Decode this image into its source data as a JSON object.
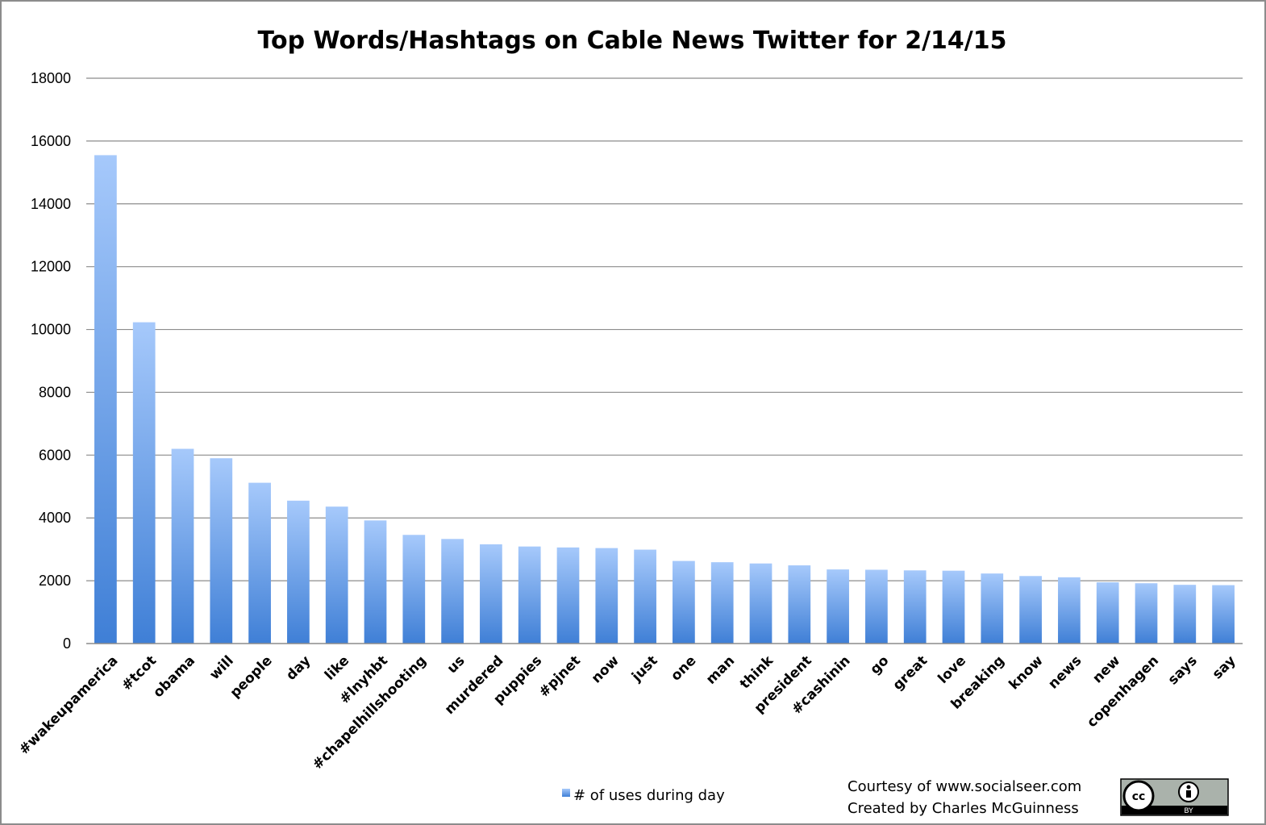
{
  "chart_data": {
    "type": "bar",
    "title": "Top Words/Hashtags on Cable News Twitter for 2/14/15",
    "xlabel": "",
    "ylabel": "",
    "ylim": [
      0,
      18000
    ],
    "yticks": [
      0,
      2000,
      4000,
      6000,
      8000,
      10000,
      12000,
      14000,
      16000,
      18000
    ],
    "grid": true,
    "legend_position": "bottom",
    "categories": [
      "#wakeupamerica",
      "#tcot",
      "obama",
      "will",
      "people",
      "day",
      "like",
      "#lnyhbt",
      "#chapelhillshooting",
      "us",
      "murdered",
      "puppies",
      "#pjnet",
      "now",
      "just",
      "one",
      "man",
      "think",
      "president",
      "#cashinin",
      "go",
      "great",
      "love",
      "breaking",
      "know",
      "news",
      "new",
      "copenhagen",
      "says",
      "say"
    ],
    "series": [
      {
        "name": "# of uses during day",
        "values": [
          15550,
          10230,
          6200,
          5900,
          5120,
          4550,
          4360,
          3920,
          3460,
          3330,
          3160,
          3090,
          3060,
          3040,
          2990,
          2630,
          2590,
          2550,
          2490,
          2360,
          2350,
          2330,
          2320,
          2230,
          2150,
          2110,
          1950,
          1920,
          1870,
          1860
        ]
      }
    ]
  },
  "credits": {
    "line1": "Courtesy of www.socialseer.com",
    "line2": "Created by Charles McGuinness"
  },
  "license_badge": {
    "icon": "cc-by-license-icon",
    "cc_text": "cc",
    "by_text": "BY"
  },
  "colors": {
    "bar_top": "#a6c9fb",
    "bar_bottom": "#3f7fd6",
    "grid": "#8c8c8c",
    "axis": "#8c8c8c",
    "frame": "#8c8c8c"
  }
}
